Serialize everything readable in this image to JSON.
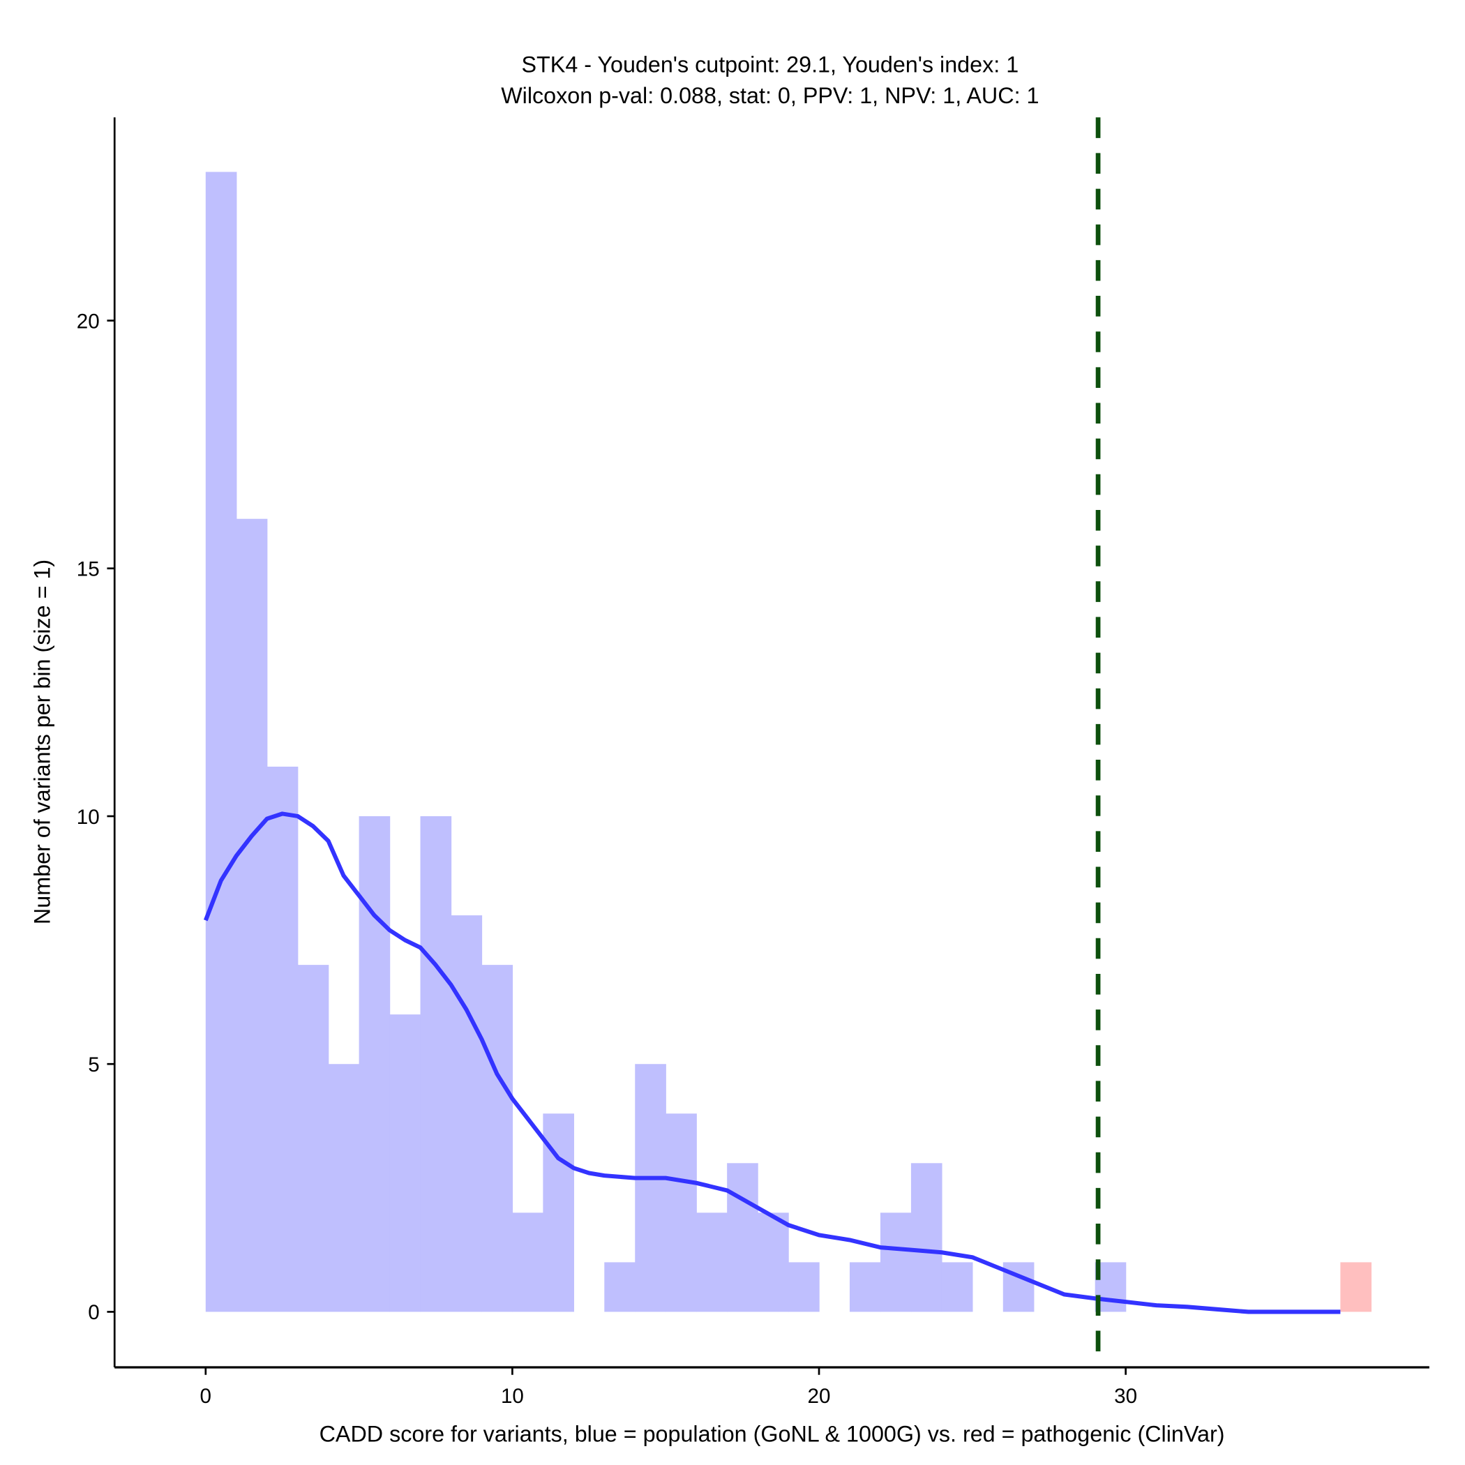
{
  "chart_data": {
    "type": "bar",
    "title": "STK4 - Youden's cutpoint: 29.1, Youden's index: 1",
    "subtitle": "Wilcoxon p-val: 0.088, stat: 0, PPV: 1, NPV: 1, AUC: 1",
    "xlabel": "CADD score for variants, blue = population (GoNL & 1000G) vs. red = pathogenic (ClinVar)",
    "ylabel": "Number of variants per bin (size = 1)",
    "xlim": [
      -2.97,
      39.9
    ],
    "ylim": [
      -1.12,
      24.1
    ],
    "xticks": [
      0,
      10,
      20,
      30
    ],
    "yticks": [
      0,
      5,
      10,
      15,
      20
    ],
    "bin_width": 1,
    "series": [
      {
        "name": "population",
        "color": "#bfbffe",
        "bin_starts": [
          0,
          1,
          2,
          3,
          4,
          5,
          6,
          7,
          8,
          9,
          10,
          11,
          12,
          13,
          14,
          15,
          16,
          17,
          18,
          19,
          20,
          21,
          22,
          23,
          24,
          25,
          26,
          27,
          28,
          29
        ],
        "values": [
          23,
          16,
          11,
          7,
          5,
          10,
          6,
          10,
          8,
          7,
          2,
          4,
          0,
          1,
          5,
          4,
          2,
          3,
          2,
          1,
          0,
          1,
          2,
          3,
          1,
          0,
          1,
          0,
          0,
          1
        ]
      },
      {
        "name": "pathogenic",
        "color": "#ffbfbf",
        "bin_starts": [
          37
        ],
        "values": [
          1
        ]
      }
    ],
    "density": {
      "color": "#3333ff",
      "x": [
        0,
        0.5,
        1,
        1.5,
        2,
        2.5,
        3,
        3.5,
        4,
        4.5,
        5,
        5.5,
        6,
        6.5,
        7,
        7.5,
        8,
        8.5,
        9,
        9.5,
        10,
        10.5,
        11,
        11.5,
        12,
        12.5,
        13,
        14,
        15,
        16,
        17,
        18,
        19,
        20,
        21,
        22,
        23,
        24,
        25,
        26,
        27,
        28,
        29,
        30,
        31,
        32,
        33,
        34,
        35,
        36,
        37
      ],
      "y": [
        7.9,
        8.7,
        9.2,
        9.6,
        9.95,
        10.05,
        10.0,
        9.8,
        9.5,
        8.8,
        8.4,
        8.0,
        7.7,
        7.5,
        7.35,
        7.0,
        6.6,
        6.1,
        5.5,
        4.8,
        4.3,
        3.9,
        3.5,
        3.1,
        2.9,
        2.8,
        2.75,
        2.7,
        2.7,
        2.6,
        2.45,
        2.1,
        1.75,
        1.55,
        1.45,
        1.3,
        1.25,
        1.2,
        1.1,
        0.85,
        0.6,
        0.35,
        0.27,
        0.2,
        0.13,
        0.1,
        0.05,
        0,
        0,
        0,
        0
      ]
    },
    "cutpoint": {
      "x": 29.1,
      "color": "#0d4f0d"
    }
  }
}
